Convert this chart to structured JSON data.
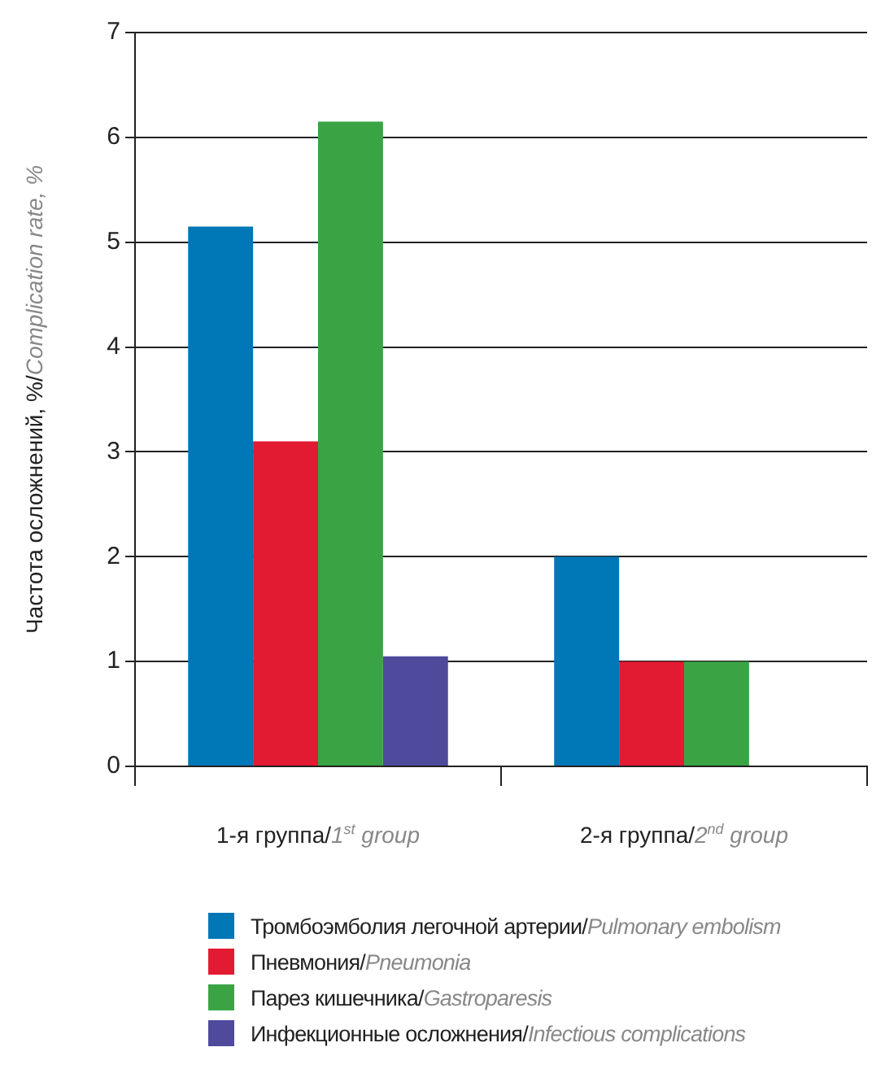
{
  "chart_data": {
    "type": "bar",
    "ylabel": "Частота осложнений, %/Complication rate, %",
    "categories": [
      "1-я группа/1$^{st}$ group",
      "2-я группа/2$^{nd}$ group"
    ],
    "series": [
      {
        "name": "Тромбоэмболия легочной артерии/Pulmonary embolism",
        "color": "#0077b6",
        "values": [
          5.15,
          2
        ]
      },
      {
        "name": "Пневмония/Pneumonia",
        "color": "#e21a32",
        "values": [
          3.1,
          1
        ]
      },
      {
        "name": "Парез кишечника/Gastroparesis",
        "color": "#3aa445",
        "values": [
          6.15,
          1
        ]
      },
      {
        "name": "Инфекционные осложнения/Infectious complications",
        "color": "#4f4a9c",
        "values": [
          1.05,
          0
        ]
      }
    ],
    "ylim": [
      0,
      7
    ],
    "yticks": [
      0,
      1,
      2,
      3,
      4,
      5,
      6,
      7
    ],
    "grid": "y",
    "legend": "bottom"
  }
}
